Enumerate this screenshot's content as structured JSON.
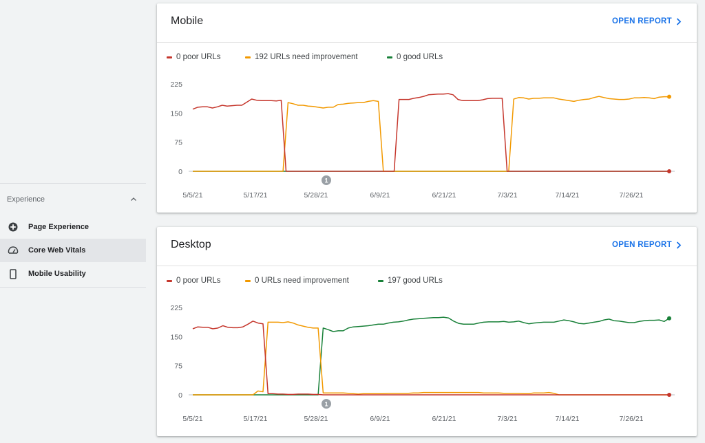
{
  "sidebar": {
    "section_label": "Experience",
    "items": [
      {
        "label": "Page Experience",
        "icon": "page-experience-icon"
      },
      {
        "label": "Core Web Vitals",
        "icon": "gauge-icon",
        "active": true
      },
      {
        "label": "Mobile Usability",
        "icon": "phone-icon"
      }
    ]
  },
  "colors": {
    "poor": "#c5362c",
    "needs": "#f29900",
    "good": "#188038",
    "link": "#1a73e8"
  },
  "cards": [
    {
      "title": "Mobile",
      "open_report": "OPEN REPORT",
      "legend": {
        "poor": "0 poor URLs",
        "needs": "192 URLs need improvement",
        "good": "0 good URLs"
      },
      "annotation": "1"
    },
    {
      "title": "Desktop",
      "open_report": "OPEN REPORT",
      "legend": {
        "poor": "0 poor URLs",
        "needs": "0 URLs need improvement",
        "good": "197 good URLs"
      },
      "annotation": "1"
    }
  ],
  "chart_data": [
    {
      "type": "line",
      "y_ticks": [
        "225",
        "150",
        "75",
        "0"
      ],
      "ylim": [
        0,
        225
      ],
      "x_ticks": [
        "5/5/21",
        "5/17/21",
        "5/28/21",
        "6/9/21",
        "6/21/21",
        "7/3/21",
        "7/14/21",
        "7/26/21"
      ],
      "series": [
        {
          "name": "0 poor URLs",
          "key": "poor",
          "values": [
            160,
            165,
            166,
            166,
            163,
            166,
            170,
            168,
            169,
            170,
            170,
            178,
            186,
            183,
            182,
            182,
            182,
            181,
            183,
            0,
            0,
            0,
            0,
            0,
            0,
            0,
            0,
            0,
            0,
            0,
            0,
            0,
            0,
            0,
            0,
            0,
            0,
            0,
            0,
            0,
            0,
            0,
            185,
            185,
            185,
            188,
            190,
            193,
            197,
            198,
            199,
            199,
            200,
            197,
            185,
            182,
            182,
            182,
            182,
            184,
            187,
            188,
            188,
            188,
            0,
            0,
            0,
            0,
            0,
            0,
            0,
            0,
            0,
            0,
            0,
            0,
            0,
            0,
            0,
            0,
            0,
            0,
            0,
            0,
            0,
            0,
            0,
            0,
            0,
            0,
            0,
            0,
            0,
            0,
            0,
            0,
            0,
            0
          ]
        },
        {
          "name": "192 URLs need improvement",
          "key": "needs",
          "values": [
            0,
            0,
            0,
            0,
            0,
            0,
            0,
            0,
            0,
            0,
            0,
            0,
            0,
            0,
            0,
            0,
            0,
            0,
            0,
            177,
            174,
            170,
            170,
            168,
            167,
            165,
            163,
            165,
            165,
            172,
            173,
            175,
            176,
            177,
            177,
            180,
            182,
            180,
            0,
            0,
            0,
            0,
            0,
            0,
            0,
            0,
            0,
            0,
            0,
            0,
            0,
            0,
            0,
            0,
            0,
            0,
            0,
            0,
            0,
            0,
            0,
            0,
            0,
            0,
            186,
            190,
            189,
            186,
            188,
            188,
            189,
            189,
            189,
            186,
            184,
            182,
            180,
            183,
            185,
            186,
            190,
            193,
            190,
            187,
            186,
            185,
            185,
            186,
            189,
            189,
            190,
            189,
            187,
            191,
            192,
            192
          ]
        },
        {
          "name": "0 good URLs",
          "key": "good",
          "values": [
            0,
            0,
            0,
            0,
            0,
            0,
            0,
            0,
            0,
            0,
            0,
            0,
            0,
            0,
            0,
            0,
            0,
            0,
            0,
            0,
            0,
            0,
            0,
            0,
            0,
            0,
            0,
            0,
            0,
            0,
            0,
            0,
            0,
            0,
            0,
            0,
            0,
            0,
            0,
            0,
            0,
            0,
            0,
            0,
            0,
            0,
            0,
            0,
            0,
            0,
            0,
            0,
            0,
            0,
            0,
            0,
            0,
            0,
            0,
            0,
            0,
            0,
            0,
            0,
            0,
            0,
            0,
            0,
            0,
            0,
            0,
            0,
            0,
            0,
            0,
            0,
            0,
            0,
            0,
            0,
            0,
            0,
            0,
            0,
            0,
            0,
            0,
            0,
            0,
            0,
            0,
            0,
            0,
            0,
            0,
            0
          ]
        }
      ]
    },
    {
      "type": "line",
      "y_ticks": [
        "225",
        "150",
        "75",
        "0"
      ],
      "ylim": [
        0,
        225
      ],
      "x_ticks": [
        "5/5/21",
        "5/17/21",
        "5/28/21",
        "6/9/21",
        "6/21/21",
        "7/3/21",
        "7/14/21",
        "7/26/21"
      ],
      "series": [
        {
          "name": "0 poor URLs",
          "key": "poor",
          "values": [
            170,
            175,
            174,
            174,
            170,
            172,
            178,
            174,
            173,
            173,
            175,
            182,
            190,
            185,
            183,
            3,
            3,
            2,
            2,
            1,
            1,
            2,
            2,
            2,
            1,
            1,
            0,
            0,
            0,
            0,
            0,
            0,
            0,
            0,
            0,
            0,
            0,
            0,
            0,
            0,
            0,
            0,
            0,
            0,
            0,
            0,
            0,
            0,
            0,
            0,
            0,
            0,
            0,
            0,
            0,
            0,
            0,
            0,
            0,
            0,
            0,
            0,
            0,
            0,
            0,
            0,
            0,
            0,
            0,
            0,
            0,
            0,
            0,
            0,
            0,
            0,
            0,
            0,
            0,
            0,
            0,
            0,
            0,
            0,
            0,
            0,
            0,
            0,
            0,
            0,
            0,
            0,
            0,
            0,
            0,
            0
          ]
        },
        {
          "name": "0 URLs need improvement",
          "key": "needs",
          "values": [
            0,
            0,
            0,
            0,
            0,
            0,
            0,
            0,
            0,
            0,
            0,
            0,
            0,
            10,
            8,
            187,
            187,
            187,
            186,
            188,
            185,
            180,
            177,
            174,
            172,
            172,
            5,
            5,
            5,
            5,
            5,
            4,
            3,
            2,
            3,
            3,
            3,
            3,
            3,
            4,
            4,
            4,
            4,
            4,
            5,
            5,
            6,
            6,
            6,
            6,
            6,
            6,
            6,
            6,
            6,
            6,
            6,
            6,
            5,
            5,
            5,
            5,
            4,
            4,
            4,
            4,
            3,
            3,
            5,
            5,
            5,
            6,
            4,
            0,
            0,
            0,
            0,
            0,
            0,
            0,
            0,
            0,
            0,
            0,
            0,
            0,
            0,
            0,
            0,
            0,
            0,
            0,
            0,
            0,
            0,
            0
          ]
        },
        {
          "name": "197 good URLs",
          "key": "good",
          "values": [
            0,
            0,
            0,
            0,
            0,
            0,
            0,
            0,
            0,
            0,
            0,
            0,
            0,
            0,
            0,
            0,
            0,
            0,
            0,
            0,
            0,
            0,
            0,
            0,
            0,
            0,
            172,
            168,
            163,
            165,
            165,
            172,
            175,
            176,
            177,
            178,
            180,
            182,
            182,
            185,
            187,
            188,
            190,
            193,
            195,
            196,
            197,
            198,
            199,
            199,
            200,
            198,
            190,
            184,
            182,
            182,
            182,
            185,
            187,
            188,
            188,
            188,
            189,
            187,
            188,
            190,
            186,
            183,
            185,
            186,
            187,
            187,
            187,
            190,
            193,
            191,
            188,
            184,
            183,
            185,
            187,
            189,
            193,
            195,
            191,
            190,
            188,
            186,
            186,
            189,
            191,
            192,
            192,
            193,
            189,
            197
          ]
        }
      ]
    }
  ]
}
